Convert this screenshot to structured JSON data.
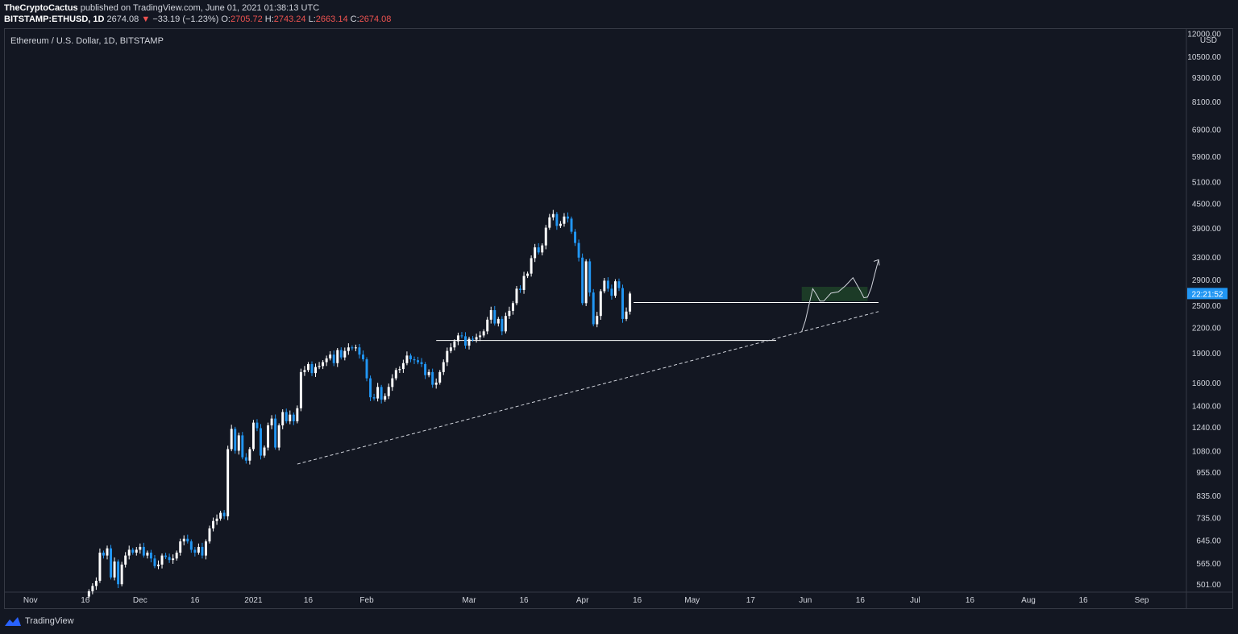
{
  "header": {
    "author": "TheCryptoCactus",
    "published_text": "published on TradingView.com, June 01, 2021 01:38:13 UTC",
    "symbol": "BITSTAMP:ETHUSD, 1D",
    "last_price": "2674.08",
    "change": "−33.19 (−1.23%)",
    "o_label": "O:",
    "o_value": "2705.72",
    "h_label": "H:",
    "h_value": "2743.24",
    "l_label": "L:",
    "l_value": "2663.14",
    "c_label": "C:",
    "c_value": "2674.08"
  },
  "legend_title": "Ethereum / U.S. Dollar, 1D, BITSTAMP",
  "footer": {
    "brand": "TradingView"
  },
  "colors": {
    "background": "#131722",
    "up": "#ffffff",
    "down": "#2196f3",
    "axis_text": "#d1d4dc",
    "price_tag": "#2196f3",
    "projection_fill": "#2e7d32",
    "red": "#ef5350"
  },
  "chart_data": {
    "type": "candlestick",
    "title": "Ethereum / U.S. Dollar, 1D, BITSTAMP",
    "currency": "USD",
    "y_scale": "log",
    "ylim": [
      480,
      12300
    ],
    "y_ticks": [
      "12000.00",
      "10500.00",
      "9300.00",
      "8100.00",
      "6900.00",
      "5900.00",
      "5100.00",
      "4500.00",
      "3900.00",
      "3300.00",
      "2900.00",
      "2500.00",
      "2200.00",
      "1900.00",
      "1600.00",
      "1400.00",
      "1240.00",
      "1080.00",
      "955.00",
      "835.00",
      "735.00",
      "645.00",
      "565.00",
      "501.00"
    ],
    "x_range": [
      "2020-10-25",
      "2021-09-13"
    ],
    "x_ticks": [
      {
        "date": "2020-11-01",
        "label": "Nov"
      },
      {
        "date": "2020-11-16",
        "label": "16"
      },
      {
        "date": "2020-12-01",
        "label": "Dec"
      },
      {
        "date": "2020-12-16",
        "label": "16"
      },
      {
        "date": "2021-01-01",
        "label": "2021"
      },
      {
        "date": "2021-01-16",
        "label": "16"
      },
      {
        "date": "2021-02-01",
        "label": "Feb"
      },
      {
        "date": "2021-03-01",
        "label": "Mar"
      },
      {
        "date": "2021-03-16",
        "label": "16"
      },
      {
        "date": "2021-04-01",
        "label": "Apr"
      },
      {
        "date": "2021-04-16",
        "label": "16"
      },
      {
        "date": "2021-05-01",
        "label": "May"
      },
      {
        "date": "2021-05-17",
        "label": "17"
      },
      {
        "date": "2021-06-01",
        "label": "Jun"
      },
      {
        "date": "2021-06-16",
        "label": "16"
      },
      {
        "date": "2021-07-01",
        "label": "Jul"
      },
      {
        "date": "2021-07-16",
        "label": "16"
      },
      {
        "date": "2021-08-01",
        "label": "Aug"
      },
      {
        "date": "2021-08-16",
        "label": "16"
      },
      {
        "date": "2021-09-01",
        "label": "Sep"
      }
    ],
    "countdown_label": "22:21:52",
    "countdown_price": 2674.08,
    "series_start": "2020-11-17",
    "close": [
      480,
      495,
      510,
      600,
      590,
      615,
      520,
      570,
      500,
      560,
      590,
      610,
      600,
      610,
      620,
      590,
      600,
      580,
      555,
      560,
      590,
      585,
      575,
      580,
      600,
      640,
      650,
      640,
      610,
      600,
      620,
      590,
      640,
      690,
      720,
      730,
      755,
      740,
      1090,
      1225,
      1080,
      1180,
      1040,
      1020,
      1090,
      1270,
      1230,
      1050,
      1100,
      1250,
      1300,
      1100,
      1250,
      1350,
      1280,
      1330,
      1280,
      1380,
      1700,
      1720,
      1780,
      1690,
      1750,
      1760,
      1800,
      1840,
      1880,
      1790,
      1930,
      1850,
      1920,
      1960,
      1950,
      1960,
      1880,
      1830,
      1640,
      1470,
      1460,
      1560,
      1450,
      1480,
      1560,
      1640,
      1720,
      1730,
      1790,
      1870,
      1830,
      1820,
      1800,
      1780,
      1670,
      1700,
      1580,
      1600,
      1700,
      1800,
      1920,
      1960,
      2030,
      2100,
      2090,
      1980,
      2060,
      2050,
      2080,
      2100,
      2150,
      2300,
      2430,
      2250,
      2310,
      2150,
      2350,
      2420,
      2530,
      2750,
      2730,
      2960,
      3000,
      3280,
      3490,
      3390,
      3530,
      3910,
      4150,
      4230,
      3950,
      4000,
      4170,
      4120,
      3820,
      3580,
      3290,
      2530,
      3220,
      2690,
      2240,
      2350,
      2710,
      2880,
      2750,
      2640,
      2870,
      2760,
      2310,
      2410,
      2674.08
    ],
    "trendline": {
      "start": {
        "date": "2021-01-13",
        "price": 1000
      },
      "end": {
        "date": "2021-06-21",
        "price": 2410
      },
      "style": "dashed"
    },
    "support_1": {
      "price": 2040,
      "from": "2021-02-20",
      "to": "2021-05-24"
    },
    "support_2": {
      "price": 2540,
      "from": "2021-04-15",
      "to": "2021-06-21"
    },
    "projection": [
      {
        "date": "2021-05-31",
        "price": 2150
      },
      {
        "date": "2021-06-01",
        "price": 2290
      },
      {
        "date": "2021-06-02",
        "price": 2510
      },
      {
        "date": "2021-06-03",
        "price": 2750
      },
      {
        "date": "2021-06-04",
        "price": 2660
      },
      {
        "date": "2021-06-05",
        "price": 2560
      },
      {
        "date": "2021-06-06",
        "price": 2560
      },
      {
        "date": "2021-06-08",
        "price": 2680
      },
      {
        "date": "2021-06-10",
        "price": 2700
      },
      {
        "date": "2021-06-12",
        "price": 2800
      },
      {
        "date": "2021-06-14",
        "price": 2930
      },
      {
        "date": "2021-06-16",
        "price": 2720
      },
      {
        "date": "2021-06-17",
        "price": 2610
      },
      {
        "date": "2021-06-18",
        "price": 2620
      },
      {
        "date": "2021-06-19",
        "price": 2760
      },
      {
        "date": "2021-06-20",
        "price": 3000
      },
      {
        "date": "2021-06-21",
        "price": 3250
      }
    ],
    "projection_zone": {
      "from": "2021-05-31",
      "to": "2021-06-18",
      "low": 2560,
      "high": 2780
    }
  }
}
